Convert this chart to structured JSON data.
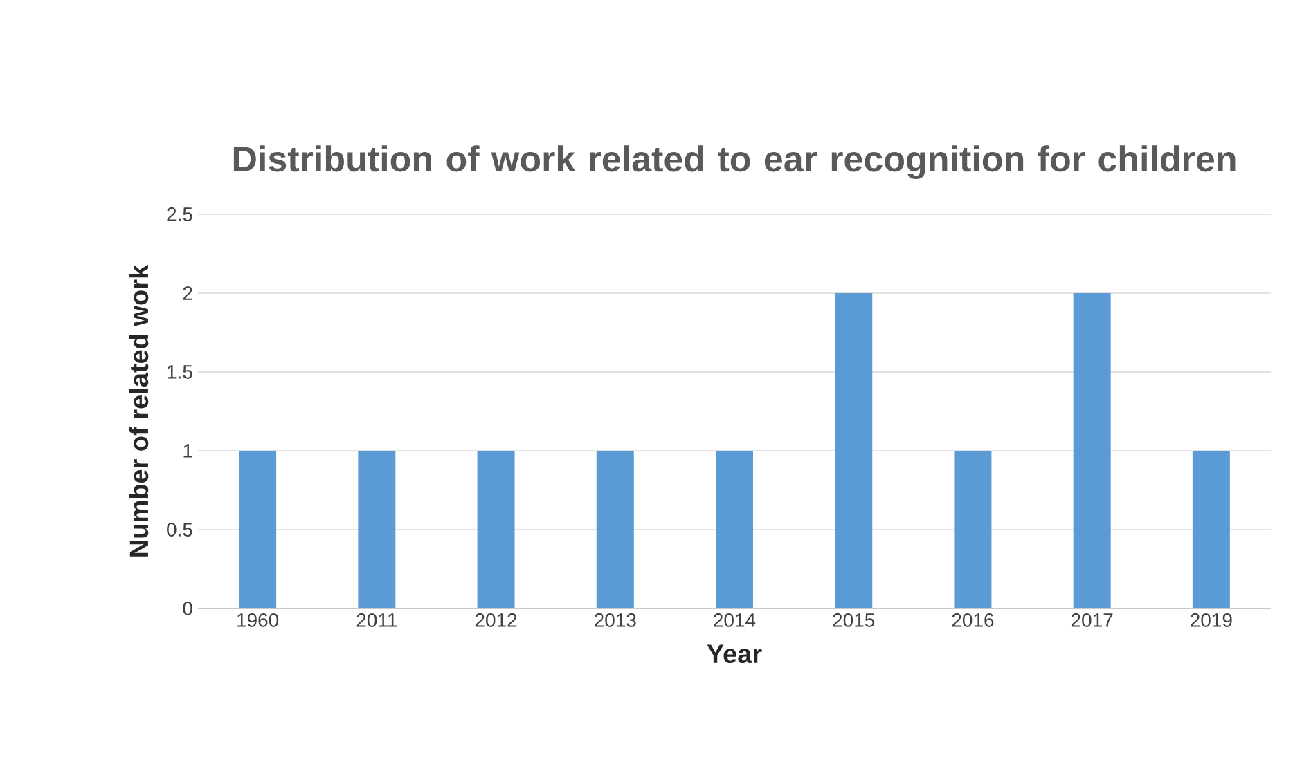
{
  "chart_data": {
    "type": "bar",
    "title": "Distribution of work related to ear recognition for children",
    "xlabel": "Year",
    "ylabel": "Number of related work",
    "categories": [
      "1960",
      "2011",
      "2012",
      "2013",
      "2014",
      "2015",
      "2016",
      "2017",
      "2019"
    ],
    "values": [
      1,
      1,
      1,
      1,
      1,
      2,
      1,
      2,
      1
    ],
    "color": "#5b9bd5",
    "ylim": [
      0,
      2.5
    ],
    "yticks": [
      0,
      0.5,
      1,
      1.5,
      2,
      2.5
    ],
    "grid": "y"
  }
}
